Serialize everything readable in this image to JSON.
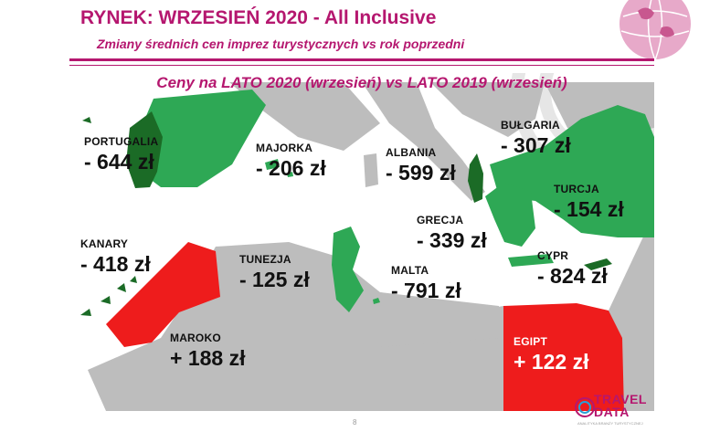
{
  "header": {
    "title": "RYNEK: WRZESIEŃ 2020 - All Inclusive",
    "subtitle": "Zmiany średnich cen imprez turystycznych vs rok poprzedni"
  },
  "map": {
    "heading": "Ceny na LATO 2020 (wrzesień) vs  LATO 2019 (wrzesień)",
    "colors": {
      "decrease": "#2ea855",
      "decrease_dark": "#1b6b26",
      "increase": "#ee1c1c",
      "land": "#bdbdbd",
      "sea": "#ffffff"
    },
    "destinations": [
      {
        "name": "PORTUGALIA",
        "change": "- 644 zł",
        "change_pln": -644,
        "trend": "decrease"
      },
      {
        "name": "MAJORKA",
        "change": "- 206 zł",
        "change_pln": -206,
        "trend": "decrease"
      },
      {
        "name": "ALBANIA",
        "change": "- 599 zł",
        "change_pln": -599,
        "trend": "decrease"
      },
      {
        "name": "BUŁGARIA",
        "change": "- 307 zł",
        "change_pln": -307,
        "trend": "decrease"
      },
      {
        "name": "TURCJA",
        "change": "- 154 zł",
        "change_pln": -154,
        "trend": "decrease"
      },
      {
        "name": "GRECJA",
        "change": "- 339 zł",
        "change_pln": -339,
        "trend": "decrease"
      },
      {
        "name": "KANARY",
        "change": "- 418 zł",
        "change_pln": -418,
        "trend": "decrease"
      },
      {
        "name": "TUNEZJA",
        "change": "- 125 zł",
        "change_pln": -125,
        "trend": "decrease"
      },
      {
        "name": "MALTA",
        "change": "- 791 zł",
        "change_pln": -791,
        "trend": "decrease"
      },
      {
        "name": "CYPR",
        "change": "- 824 zł",
        "change_pln": -824,
        "trend": "decrease"
      },
      {
        "name": "MAROKO",
        "change": "+ 188 zł",
        "change_pln": 188,
        "trend": "increase"
      },
      {
        "name": "EGIPT",
        "change": "+ 122 zł",
        "change_pln": 122,
        "trend": "increase"
      }
    ]
  },
  "footer": {
    "page_number": "8",
    "logo_line1": "TRAVEL",
    "logo_line2": "DATA",
    "logo_tag": "ANALITYKA BRANŻY TURYSTYCZNEJ"
  }
}
